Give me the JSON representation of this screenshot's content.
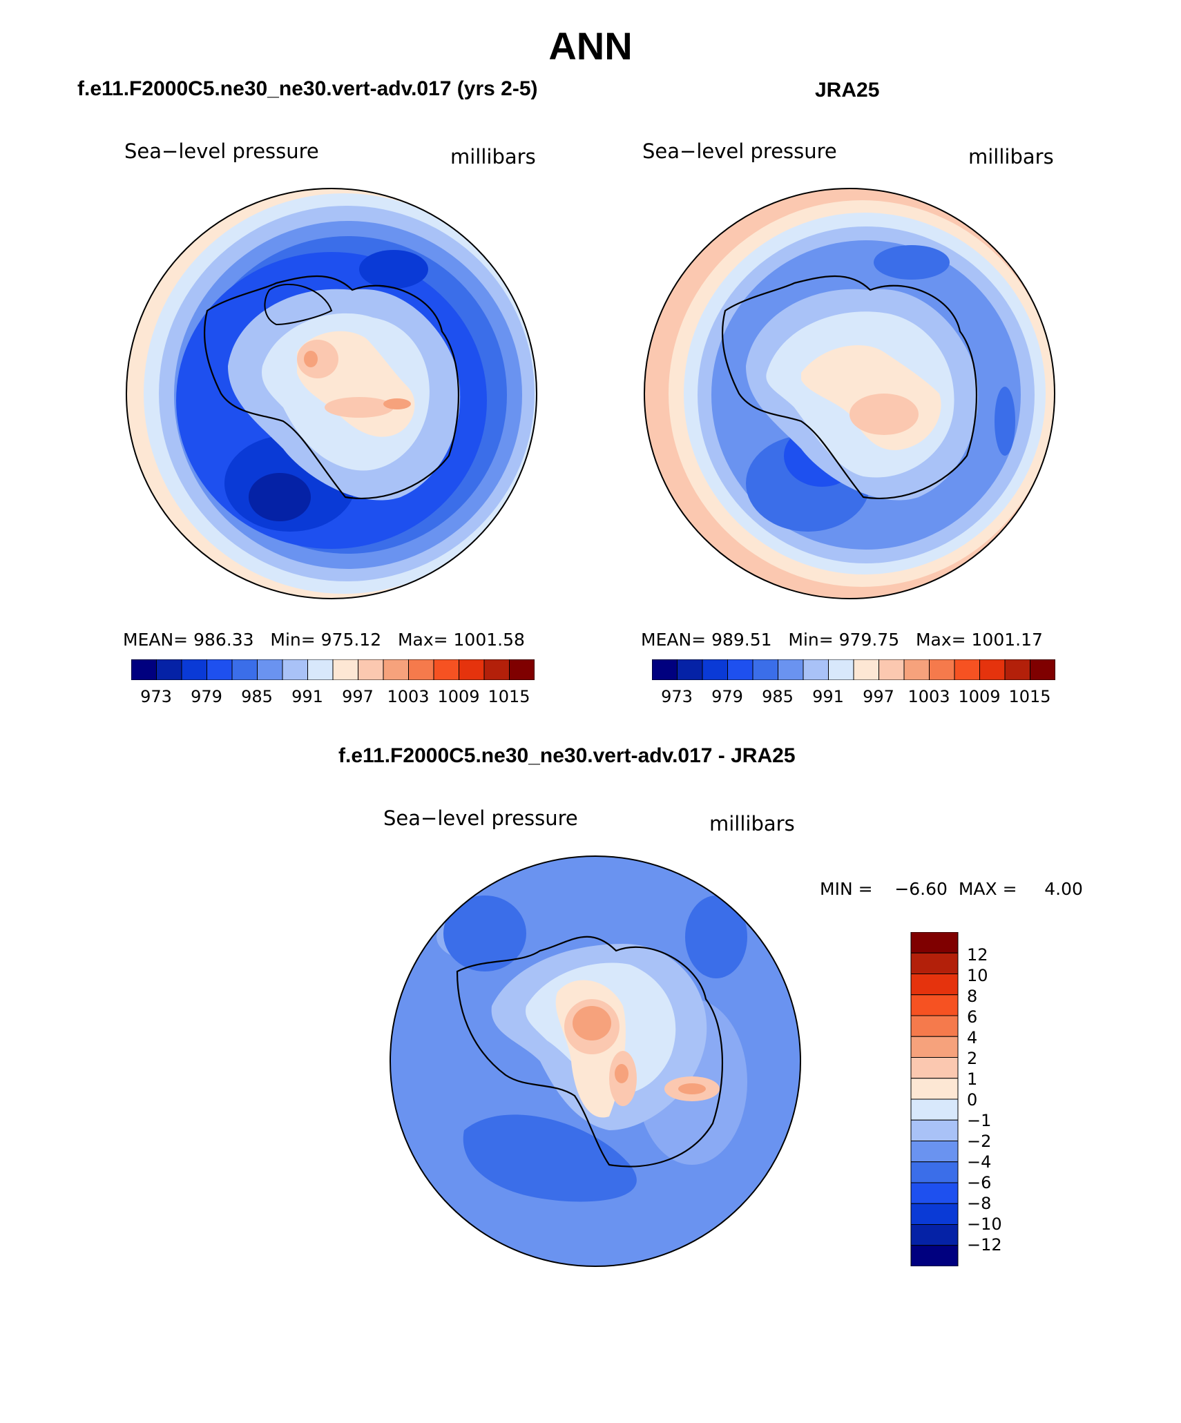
{
  "title": "ANN",
  "panels": [
    {
      "heading": "f.e11.F2000C5.ne30_ne30.vert-adv.017 (yrs 2-5)",
      "left_label": "Sea−level pressure",
      "right_label": "millibars",
      "stats": "MEAN= 986.33   Min= 975.12   Max= 1001.58",
      "colorbar_labels": [
        "973",
        "979",
        "985",
        "991",
        "997",
        "1003",
        "1009",
        "1015"
      ]
    },
    {
      "heading": "JRA25",
      "left_label": "Sea−level pressure",
      "right_label": "millibars",
      "stats": "MEAN= 989.51   Min= 979.75   Max= 1001.17",
      "colorbar_labels": [
        "973",
        "979",
        "985",
        "991",
        "997",
        "1003",
        "1009",
        "1015"
      ]
    }
  ],
  "difference": {
    "heading": "f.e11.F2000C5.ne30_ne30.vert-adv.017 - JRA25",
    "left_label": "Sea−level pressure",
    "right_label": "millibars",
    "stats": "MIN =    −6.60  MAX =     4.00",
    "colorbar_labels": [
      "12",
      "10",
      "8",
      "6",
      "4",
      "2",
      "1",
      "0",
      "−1",
      "−2",
      "−4",
      "−6",
      "−8",
      "−10",
      "−12"
    ]
  },
  "colors": {
    "absolute_scale": [
      "#00007f",
      "#0522a6",
      "#0a3ad6",
      "#1e50ef",
      "#3b6ee9",
      "#6a93f0",
      "#a9c2f7",
      "#d8e8fb",
      "#fde7d4",
      "#fbc8b0",
      "#f6a27c",
      "#f57a4c",
      "#f65222",
      "#e5330d",
      "#b3200a",
      "#7f0000"
    ],
    "difference_scale": [
      "#00007f",
      "#0522a6",
      "#0a3ad6",
      "#1e50ef",
      "#3b6ee9",
      "#6a93f0",
      "#a9c2f7",
      "#d8e8fb",
      "#fde7d4",
      "#fbc8b0",
      "#f6a27c",
      "#f57a4c",
      "#f65222",
      "#e5330d",
      "#b3200a",
      "#7f0000"
    ]
  }
}
